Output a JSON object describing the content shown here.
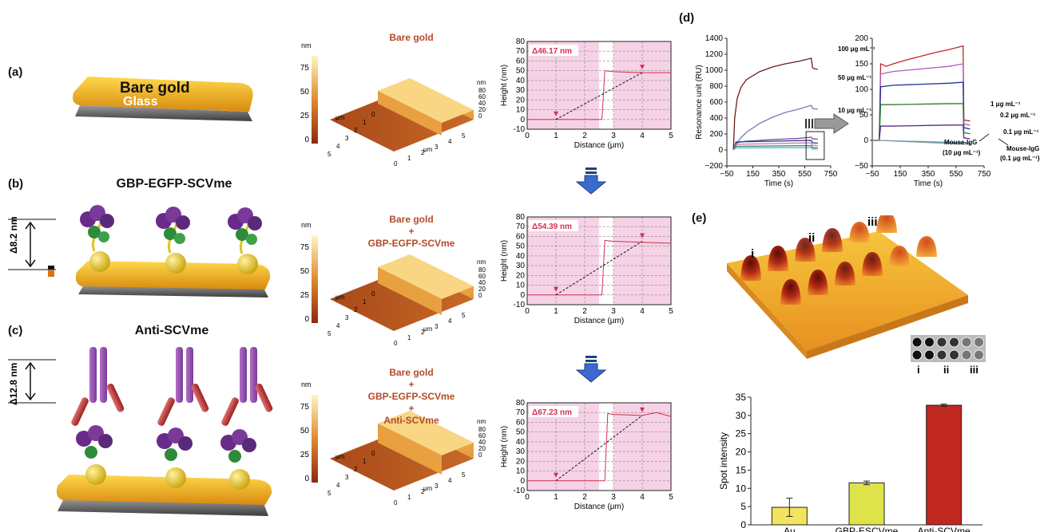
{
  "panels": {
    "a": "(a)",
    "b": "(b)",
    "c": "(c)",
    "d": "(d)",
    "e": "(e)"
  },
  "schematic": {
    "a_top": "Bare gold",
    "a_bottom": "Glass",
    "b_title": "GBP-EGFP-SCVme",
    "b_height": "Δ8.2 nm",
    "c_title": "Anti-SCVme",
    "c_height": "Δ12.8 nm"
  },
  "afm": [
    {
      "title_lines": [
        "Bare gold"
      ],
      "zunit": "nm",
      "zticks": [
        "75",
        "50",
        "25",
        "0"
      ],
      "axis_unit_y": "μm",
      "axis_unit_x": "μm",
      "axis_unit_z": "nm"
    },
    {
      "title_lines": [
        "Bare gold",
        "+",
        "GBP-EGFP-SCVme"
      ],
      "zunit": "nm",
      "zticks": [
        "75",
        "50",
        "25",
        "0"
      ],
      "axis_unit_y": "μm",
      "axis_unit_x": "μm",
      "axis_unit_z": "nm"
    },
    {
      "title_lines": [
        "Bare gold",
        "+",
        "GBP-EGFP-SCVme",
        "+",
        "Anti-SCVme"
      ],
      "zunit": "nm",
      "zticks": [
        "75",
        "50",
        "25",
        "0"
      ],
      "axis_unit_y": "μm",
      "axis_unit_x": "μm",
      "axis_unit_z": "nm"
    }
  ],
  "afm_axes": {
    "xy_ticks": [
      "0",
      "1",
      "2",
      "3",
      "4",
      "5"
    ],
    "z_ticks": [
      "80",
      "60",
      "40",
      "20",
      "0"
    ]
  },
  "chart_data": [
    {
      "type": "line",
      "xlabel": "Distance (μm)",
      "ylabel": "Height (nm)",
      "xlim": [
        0,
        5
      ],
      "ylim": [
        -10,
        80
      ],
      "xticks": [
        0,
        1,
        2,
        3,
        4,
        5
      ],
      "yticks": [
        -10,
        0,
        10,
        20,
        30,
        40,
        50,
        60,
        70,
        80
      ],
      "annotation": "Δ46.17 nm",
      "highlight_ranges": [
        [
          0,
          2.5
        ],
        [
          3,
          5
        ]
      ],
      "x": [
        0,
        1,
        2,
        2.6,
        2.7,
        3,
        4,
        5
      ],
      "y": [
        0,
        0,
        0,
        0,
        50,
        49,
        48,
        48
      ],
      "marker_points": [
        {
          "x": 1,
          "y": 0
        },
        {
          "x": 4,
          "y": 48
        }
      ]
    },
    {
      "type": "line",
      "xlabel": "Distance (μm)",
      "ylabel": "Height (nm)",
      "xlim": [
        0,
        5
      ],
      "ylim": [
        -10,
        80
      ],
      "xticks": [
        0,
        1,
        2,
        3,
        4,
        5
      ],
      "yticks": [
        -10,
        0,
        10,
        20,
        30,
        40,
        50,
        60,
        70,
        80
      ],
      "annotation": "Δ54.39 nm",
      "highlight_ranges": [
        [
          0,
          2.5
        ],
        [
          3,
          5
        ]
      ],
      "x": [
        0,
        1,
        2,
        2.6,
        2.7,
        3,
        4,
        5
      ],
      "y": [
        0,
        0,
        0,
        0,
        56,
        55,
        54,
        53
      ],
      "marker_points": [
        {
          "x": 1,
          "y": 0
        },
        {
          "x": 4,
          "y": 55
        }
      ]
    },
    {
      "type": "line",
      "xlabel": "Distance (μm)",
      "ylabel": "Height (nm)",
      "xlim": [
        0,
        5
      ],
      "ylim": [
        -10,
        80
      ],
      "xticks": [
        0,
        1,
        2,
        3,
        4,
        5
      ],
      "yticks": [
        -10,
        0,
        10,
        20,
        30,
        40,
        50,
        60,
        70,
        80
      ],
      "annotation": "Δ67.23 nm",
      "highlight_ranges": [
        [
          0,
          2.5
        ],
        [
          3,
          5
        ]
      ],
      "x": [
        0,
        1,
        2,
        2.7,
        2.8,
        3,
        4,
        4.5,
        5
      ],
      "y": [
        0,
        0,
        0,
        0,
        69,
        68,
        67,
        70,
        66
      ],
      "marker_points": [
        {
          "x": 1,
          "y": 0
        },
        {
          "x": 4,
          "y": 67
        }
      ]
    },
    {
      "type": "line",
      "xlabel": "Time (s)",
      "ylabel": "Resonance unit (RU)",
      "xlim": [
        -50,
        750
      ],
      "ylim": [
        -200,
        1400
      ],
      "xticks": [
        -50,
        150,
        350,
        550,
        750
      ],
      "yticks": [
        -200,
        0,
        200,
        400,
        600,
        800,
        1000,
        1200,
        1400
      ],
      "series": [
        {
          "name": "100 μg mL⁻¹",
          "color": "#6b1d1d",
          "x": [
            0,
            10,
            30,
            60,
            100,
            200,
            300,
            400,
            500,
            600,
            610,
            620,
            650
          ],
          "y": [
            0,
            400,
            650,
            790,
            880,
            980,
            1040,
            1080,
            1110,
            1150,
            1030,
            1020,
            1010
          ]
        },
        {
          "name": "50 μg mL⁻¹",
          "color": "#7a7ab8",
          "x": [
            0,
            50,
            100,
            200,
            300,
            400,
            500,
            600,
            610,
            650
          ],
          "y": [
            0,
            140,
            220,
            330,
            410,
            470,
            510,
            560,
            520,
            510
          ]
        },
        {
          "name": "10 μg mL⁻¹",
          "color": "#6a4a9a",
          "x": [
            0,
            20,
            100,
            300,
            500,
            600,
            610,
            650
          ],
          "y": [
            0,
            90,
            110,
            130,
            145,
            160,
            140,
            135
          ]
        },
        {
          "name": "",
          "color": "#1e3a8a",
          "x": [
            0,
            20,
            300,
            600,
            610,
            650
          ],
          "y": [
            0,
            100,
            110,
            120,
            90,
            85
          ]
        },
        {
          "name": "",
          "color": "#d46fa8",
          "x": [
            0,
            20,
            300,
            600,
            610,
            650
          ],
          "y": [
            0,
            70,
            80,
            90,
            60,
            55
          ]
        },
        {
          "name": "",
          "color": "#2e8b57",
          "x": [
            0,
            20,
            300,
            600,
            610,
            650
          ],
          "y": [
            0,
            45,
            50,
            55,
            30,
            28
          ]
        },
        {
          "name": "",
          "color": "#5ab0d6",
          "x": [
            0,
            20,
            300,
            600,
            610,
            650
          ],
          "y": [
            0,
            25,
            28,
            30,
            12,
            10
          ]
        }
      ]
    },
    {
      "type": "line",
      "xlabel": "Time (s)",
      "ylabel": "",
      "xlim": [
        -50,
        750
      ],
      "ylim": [
        -50,
        200
      ],
      "xticks": [
        -50,
        150,
        350,
        550,
        750
      ],
      "yticks": [
        -50,
        0,
        50,
        100,
        150,
        200
      ],
      "series": [
        {
          "name": "1 μg mL⁻¹",
          "color": "#c0262d",
          "x": [
            -50,
            0,
            10,
            50,
            100,
            200,
            300,
            400,
            500,
            600,
            605,
            650
          ],
          "y": [
            0,
            0,
            150,
            145,
            150,
            158,
            165,
            172,
            178,
            185,
            40,
            38
          ]
        },
        {
          "name": "0.2 μg mL⁻¹",
          "color": "#b05bc0",
          "x": [
            -50,
            0,
            10,
            100,
            300,
            500,
            600,
            605,
            650
          ],
          "y": [
            0,
            0,
            130,
            135,
            140,
            145,
            150,
            32,
            30
          ]
        },
        {
          "name": "0.1 μg mL⁻¹",
          "color": "#1e2f9a",
          "x": [
            -50,
            0,
            10,
            100,
            300,
            500,
            600,
            605,
            650
          ],
          "y": [
            0,
            0,
            105,
            108,
            110,
            112,
            114,
            25,
            22
          ]
        },
        {
          "name": "",
          "color": "#2e7d32",
          "x": [
            -50,
            0,
            10,
            100,
            300,
            500,
            600,
            605,
            650
          ],
          "y": [
            0,
            0,
            70,
            70,
            71,
            72,
            72,
            15,
            13
          ]
        },
        {
          "name": "",
          "color": "#5a2a8a",
          "x": [
            -50,
            0,
            10,
            100,
            300,
            500,
            600,
            605,
            650
          ],
          "y": [
            0,
            0,
            28,
            28,
            29,
            30,
            30,
            5,
            3
          ]
        },
        {
          "name": "Mouse-IgG (10 μg mL⁻¹)",
          "color": "#40a0c0",
          "x": [
            -50,
            0,
            650
          ],
          "y": [
            0,
            0,
            -5
          ]
        },
        {
          "name": "Mouse-IgG (0.1 μg mL⁻¹)",
          "color": "#999999",
          "x": [
            -50,
            0,
            650
          ],
          "y": [
            0,
            0,
            -8
          ]
        }
      ]
    },
    {
      "type": "bar",
      "xlabel": "",
      "ylabel": "Spot intensity",
      "ylim": [
        0,
        35
      ],
      "yticks": [
        0,
        5,
        10,
        15,
        20,
        25,
        30,
        35
      ],
      "categories": [
        "Au",
        "GBP-ESCVme",
        "Anti-SCVme"
      ],
      "values": [
        4.8,
        11.5,
        32.8
      ],
      "errors": [
        2.5,
        0.5,
        0.3
      ],
      "colors": [
        "#f2e45e",
        "#dfe34a",
        "#c0281f"
      ]
    }
  ],
  "spr_labels": {
    "left": [
      "100 μg mL⁻¹",
      "50 μg mL⁻¹",
      "10 μg mL⁻¹"
    ],
    "right": [
      "1 μg mL⁻¹",
      "0.2 μg mL⁻¹",
      "0.1 μg mL⁻¹"
    ],
    "right_mouse1": [
      "Mouse-IgG",
      "(10 μg mL⁻¹)"
    ],
    "right_mouse2": [
      "Mouse-IgG",
      "(0.1 μg mL⁻¹)"
    ]
  },
  "spots": {
    "labels": [
      "i",
      "ii",
      "iii"
    ],
    "inset_labels": [
      "i",
      "ii",
      "iii"
    ]
  }
}
